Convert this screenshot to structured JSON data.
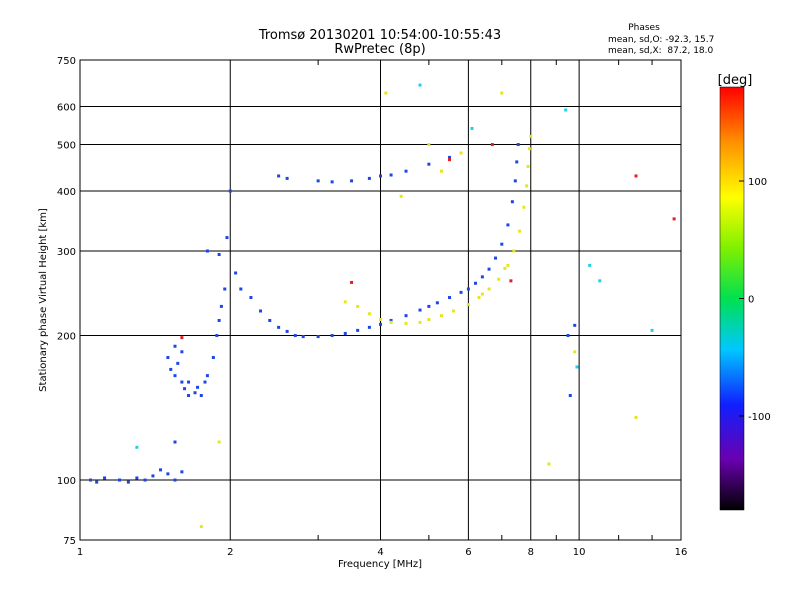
{
  "chart_data": {
    "type": "scatter",
    "title": "Tromsø 20130201 10:54:00-10:55:43",
    "subtitle": "RwPretec (8p)",
    "xlabel": "Frequency [MHz]",
    "ylabel": "Stationary phase Virtual Height [km]",
    "x_scale": "log",
    "y_scale": "log",
    "xlim": [
      1,
      16
    ],
    "ylim": [
      75,
      750
    ],
    "x_ticks": [
      1,
      2,
      4,
      6,
      8,
      10,
      16
    ],
    "y_ticks": [
      75,
      100,
      200,
      300,
      400,
      500,
      600,
      750
    ],
    "grid": true,
    "phase_stats": {
      "heading": "Phases",
      "line1": "mean, sd,O: -92.3, 15.7",
      "line2": "mean, sd,X:  87.2, 18.0"
    },
    "colorbar": {
      "label": "[deg]",
      "range": [
        -180,
        180
      ],
      "ticks": [
        100,
        0,
        -100
      ]
    },
    "series": [
      {
        "mode": "O",
        "color": "#1e46e6",
        "points": [
          [
            1.05,
            100
          ],
          [
            1.08,
            99
          ],
          [
            1.12,
            101
          ],
          [
            1.2,
            100
          ],
          [
            1.25,
            99
          ],
          [
            1.3,
            101
          ],
          [
            1.35,
            100
          ],
          [
            1.4,
            102
          ],
          [
            1.45,
            105
          ],
          [
            1.5,
            103
          ],
          [
            1.55,
            100
          ],
          [
            1.6,
            104
          ],
          [
            1.5,
            180
          ],
          [
            1.52,
            170
          ],
          [
            1.55,
            165
          ],
          [
            1.57,
            175
          ],
          [
            1.6,
            160
          ],
          [
            1.62,
            155
          ],
          [
            1.65,
            150
          ],
          [
            1.7,
            152
          ],
          [
            1.72,
            156
          ],
          [
            1.75,
            150
          ],
          [
            1.78,
            160
          ],
          [
            1.8,
            165
          ],
          [
            1.55,
            190
          ],
          [
            1.6,
            185
          ],
          [
            1.65,
            160
          ],
          [
            1.85,
            180
          ],
          [
            1.88,
            200
          ],
          [
            1.9,
            215
          ],
          [
            1.92,
            230
          ],
          [
            1.95,
            250
          ],
          [
            1.97,
            320
          ],
          [
            2.0,
            400
          ],
          [
            2.05,
            270
          ],
          [
            2.1,
            250
          ],
          [
            2.2,
            240
          ],
          [
            2.3,
            225
          ],
          [
            2.4,
            215
          ],
          [
            2.5,
            208
          ],
          [
            2.6,
            204
          ],
          [
            2.7,
            200
          ],
          [
            2.8,
            199
          ],
          [
            3.0,
            199
          ],
          [
            3.2,
            200
          ],
          [
            3.4,
            202
          ],
          [
            3.6,
            205
          ],
          [
            3.8,
            208
          ],
          [
            4.0,
            211
          ],
          [
            4.2,
            215
          ],
          [
            4.5,
            220
          ],
          [
            4.8,
            226
          ],
          [
            5.0,
            230
          ],
          [
            5.2,
            234
          ],
          [
            5.5,
            240
          ],
          [
            5.8,
            246
          ],
          [
            6.0,
            250
          ],
          [
            6.2,
            257
          ],
          [
            6.4,
            265
          ],
          [
            6.6,
            275
          ],
          [
            6.8,
            290
          ],
          [
            7.0,
            310
          ],
          [
            7.2,
            340
          ],
          [
            7.35,
            380
          ],
          [
            7.45,
            420
          ],
          [
            7.5,
            460
          ],
          [
            7.55,
            500
          ],
          [
            3.0,
            420
          ],
          [
            3.2,
            418
          ],
          [
            3.5,
            420
          ],
          [
            3.8,
            425
          ],
          [
            4.0,
            430
          ],
          [
            4.2,
            432
          ],
          [
            4.5,
            440
          ],
          [
            5.0,
            455
          ],
          [
            5.5,
            470
          ],
          [
            2.5,
            430
          ],
          [
            2.6,
            425
          ],
          [
            1.8,
            300
          ],
          [
            1.9,
            295
          ],
          [
            9.5,
            200
          ],
          [
            9.8,
            210
          ],
          [
            9.6,
            150
          ],
          [
            1.55,
            120
          ]
        ]
      },
      {
        "mode": "X",
        "color": "#e6e61e",
        "points": [
          [
            3.6,
            230
          ],
          [
            3.8,
            222
          ],
          [
            4.0,
            216
          ],
          [
            4.2,
            213
          ],
          [
            4.5,
            212
          ],
          [
            4.8,
            213
          ],
          [
            5.0,
            216
          ],
          [
            5.3,
            220
          ],
          [
            5.6,
            225
          ],
          [
            6.0,
            232
          ],
          [
            6.3,
            240
          ],
          [
            6.6,
            250
          ],
          [
            6.9,
            262
          ],
          [
            7.2,
            280
          ],
          [
            7.4,
            300
          ],
          [
            7.6,
            330
          ],
          [
            7.75,
            370
          ],
          [
            7.85,
            410
          ],
          [
            7.9,
            450
          ],
          [
            7.95,
            490
          ],
          [
            8.0,
            520
          ],
          [
            7.1,
            276
          ],
          [
            6.4,
            244
          ],
          [
            3.4,
            235
          ],
          [
            4.4,
            390
          ],
          [
            5.0,
            500
          ],
          [
            5.3,
            440
          ],
          [
            5.8,
            480
          ],
          [
            7.0,
            640
          ],
          [
            4.1,
            640
          ],
          [
            1.75,
            80
          ],
          [
            1.9,
            120
          ],
          [
            8.7,
            108
          ],
          [
            9.8,
            185
          ],
          [
            13,
            135
          ]
        ]
      },
      {
        "mode": "other",
        "color": "#e61e1e",
        "points": [
          [
            1.6,
            198
          ],
          [
            5.5,
            465
          ],
          [
            6.7,
            500
          ],
          [
            7.3,
            260
          ],
          [
            13,
            430
          ],
          [
            15.5,
            350
          ],
          [
            3.5,
            258
          ]
        ]
      },
      {
        "mode": "other",
        "color": "#1ed2e6",
        "points": [
          [
            4.8,
            665
          ],
          [
            6.1,
            540
          ],
          [
            9.4,
            590
          ],
          [
            10.5,
            280
          ],
          [
            11,
            260
          ],
          [
            14,
            205
          ],
          [
            9.9,
            172
          ],
          [
            1.3,
            117
          ]
        ]
      }
    ]
  }
}
